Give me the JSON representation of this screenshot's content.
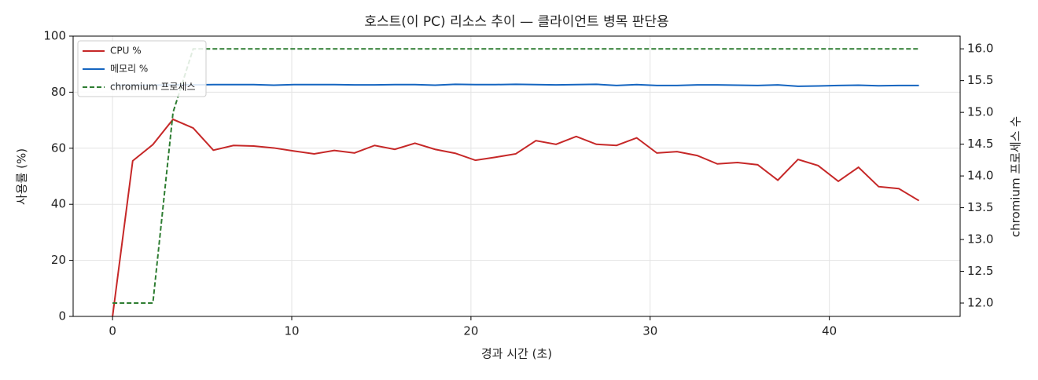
{
  "chart_data": {
    "type": "line",
    "title": "호스트(이 PC) 리소스 추이 — 클라이언트 병목 판단용",
    "xlabel": "경과 시간 (초)",
    "ylabel": "사용률 (%)",
    "y2label": "chromium 프로세스 수",
    "x": [
      0,
      1.125,
      2.25,
      3.375,
      4.5,
      5.625,
      6.75,
      7.875,
      9,
      10.125,
      11.25,
      12.375,
      13.5,
      14.625,
      15.75,
      16.875,
      18,
      19.125,
      20.25,
      21.375,
      22.5,
      23.625,
      24.75,
      25.875,
      27,
      28.125,
      29.25,
      30.375,
      31.5,
      32.625,
      33.75,
      34.875,
      36,
      37.125,
      38.25,
      39.375,
      40.5,
      41.625,
      42.75,
      43.875,
      45
    ],
    "series": [
      {
        "name": "CPU %",
        "color": "#c62828",
        "linestyle": "solid",
        "values": [
          0,
          55.5,
          61.3,
          70.3,
          67.2,
          59.3,
          61,
          60.8,
          60.1,
          59,
          58,
          59.2,
          58.3,
          61,
          59.6,
          61.8,
          59.6,
          58.2,
          55.7,
          56.8,
          58,
          62.7,
          61.4,
          64.2,
          61.4,
          61,
          63.7,
          58.3,
          58.8,
          57.4,
          54.4,
          54.9,
          54.1,
          48.6,
          56,
          53.8,
          48.2,
          53.2,
          46.3,
          45.6,
          41.3
        ]
      },
      {
        "name": "메모리 %",
        "color": "#1565c0",
        "linestyle": "solid",
        "values": [
          82.5,
          82.5,
          82.5,
          82.6,
          82.6,
          82.7,
          82.7,
          82.7,
          82.5,
          82.7,
          82.7,
          82.7,
          82.6,
          82.6,
          82.7,
          82.7,
          82.5,
          82.8,
          82.7,
          82.7,
          82.8,
          82.7,
          82.6,
          82.7,
          82.8,
          82.4,
          82.7,
          82.4,
          82.4,
          82.6,
          82.6,
          82.5,
          82.4,
          82.6,
          82.1,
          82.2,
          82.4,
          82.5,
          82.3,
          82.4,
          82.4
        ]
      },
      {
        "name": "chromium 프로세스",
        "color": "#2e7d32",
        "linestyle": "dashed",
        "axis": "y2",
        "values": [
          12,
          12,
          12,
          15,
          16,
          16,
          16,
          16,
          16,
          16,
          16,
          16,
          16,
          16,
          16,
          16,
          16,
          16,
          16,
          16,
          16,
          16,
          16,
          16,
          16,
          16,
          16,
          16,
          16,
          16,
          16,
          16,
          16,
          16,
          16,
          16,
          16,
          16,
          16,
          16,
          16
        ]
      }
    ],
    "xlim": [
      -2.2,
      47.3
    ],
    "xticks": [
      0,
      10,
      20,
      30,
      40
    ],
    "ylim": [
      0,
      100
    ],
    "yticks": [
      0,
      20,
      40,
      60,
      80,
      100
    ],
    "y2lim": [
      11.79,
      16.2
    ],
    "y2ticks": [
      {
        "value": 12,
        "label": "12.0"
      },
      {
        "value": 12.5,
        "label": "12.5"
      },
      {
        "value": 13,
        "label": "13.0"
      },
      {
        "value": 13.5,
        "label": "13.5"
      },
      {
        "value": 14,
        "label": "14.0"
      },
      {
        "value": 14.5,
        "label": "14.5"
      },
      {
        "value": 15,
        "label": "15.0"
      },
      {
        "value": 15.5,
        "label": "15.5"
      },
      {
        "value": 16,
        "label": "16.0"
      }
    ],
    "grid": true,
    "legend": "upper left"
  }
}
